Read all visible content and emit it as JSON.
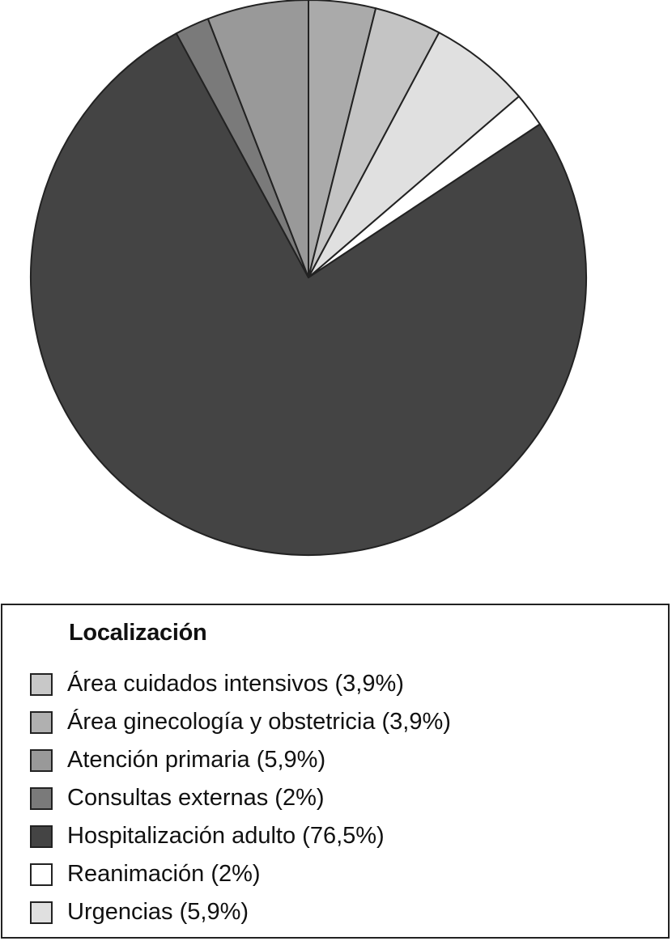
{
  "chart_data": {
    "type": "pie",
    "legend_title": "Localización",
    "legend_position": "bottom",
    "slices": [
      {
        "label": "Área cuidados intensivos (3,9%)",
        "value": 3.9,
        "color": "#aaaaaa"
      },
      {
        "label": "Área ginecología y obstetricia (3,9%)",
        "value": 3.9,
        "color": "#c4c4c4"
      },
      {
        "label": "Urgencias (5,9%)",
        "value": 5.9,
        "color": "#e0e0e0"
      },
      {
        "label": "Reanimación (2%)",
        "value": 2.0,
        "color": "#ffffff"
      },
      {
        "label": "Hospitalización adulto (76,5%)",
        "value": 76.5,
        "color": "#444444"
      },
      {
        "label": "Consultas externas (2%)",
        "value": 2.0,
        "color": "#7a7a7a"
      },
      {
        "label": "Atención primaria (5,9%)",
        "value": 5.9,
        "color": "#999999"
      }
    ],
    "legend_items": [
      {
        "label": "Área cuidados intensivos (3,9%)",
        "color": "#c8c8c8"
      },
      {
        "label": "Área ginecología y obstetricia (3,9%)",
        "color": "#b0b0b0"
      },
      {
        "label": "Atención primaria (5,9%)",
        "color": "#999999"
      },
      {
        "label": "Consultas externas (2%)",
        "color": "#7a7a7a"
      },
      {
        "label": "Hospitalización adulto (76,5%)",
        "color": "#444444"
      },
      {
        "label": "Reanimación (2%)",
        "color": "#ffffff"
      },
      {
        "label": "Urgencias (5,9%)",
        "color": "#e0e0e0"
      }
    ]
  }
}
